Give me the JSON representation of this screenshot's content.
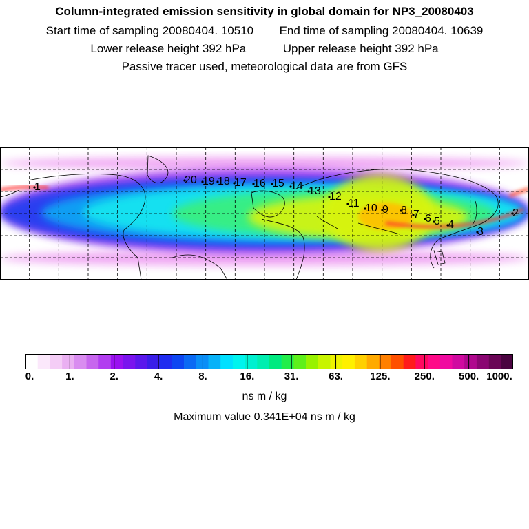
{
  "header": {
    "title": "Column-integrated emission sensitivity in global domain for NP3_20080403",
    "start": "Start time of sampling 20080404. 10510",
    "end": "End time of sampling 20080404. 10639",
    "lower": "Lower release height  392 hPa",
    "upper": "Upper release height  392 hPa",
    "tracer": "Passive tracer used, meteorological data are from GFS"
  },
  "map": {
    "release_labels": [
      "20",
      "19",
      "18",
      "17",
      "16",
      "15",
      "14",
      "13",
      "12",
      "11",
      "10",
      "9",
      "8",
      "7",
      "6",
      "5",
      "4",
      "3",
      "2",
      "1"
    ]
  },
  "colorbar": {
    "ticks": [
      "0.",
      "1.",
      "2.",
      "4.",
      "8.",
      "16.",
      "31.",
      "63.",
      "125.",
      "250.",
      "500.",
      "1000."
    ],
    "units": "ns m / kg",
    "max_label": "Maximum value  0.341E+04 ns m / kg",
    "colors": [
      "#ffffff",
      "#fbe8fb",
      "#f4cdf6",
      "#eab0f2",
      "#d98cf0",
      "#c766ee",
      "#b23ef0",
      "#9a12f0",
      "#7a14ee",
      "#5a18ec",
      "#3a1ee8",
      "#1f2cf0",
      "#0d46f2",
      "#0a6af4",
      "#0a8ef6",
      "#08b2f8",
      "#00e0ff",
      "#00f4ee",
      "#00f0d0",
      "#00eeb0",
      "#00ea80",
      "#22ee4a",
      "#5ef01a",
      "#98f200",
      "#c8f400",
      "#eef400",
      "#fff000",
      "#ffd000",
      "#ffaa00",
      "#ff8000",
      "#ff5000",
      "#ff1c1c",
      "#ff0a60",
      "#ff0a88",
      "#f00aa0",
      "#d00aa0",
      "#b0088e",
      "#8a0672",
      "#6a0556",
      "#4a0340"
    ],
    "segments": 40
  },
  "field_colors": {
    "cyan": "#12e8f0",
    "green": "#3af07a",
    "yellow": "#d8f410",
    "blue": "#1f3cf0",
    "purple": "#b23ef0",
    "pink": "#ee9ef2"
  }
}
